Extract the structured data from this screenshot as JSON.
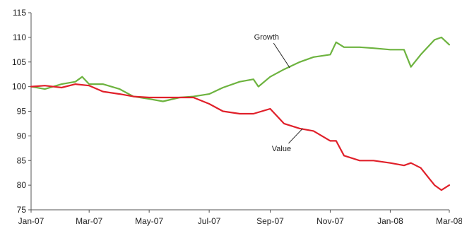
{
  "chart_data": {
    "type": "line",
    "title": "",
    "xlabel": "",
    "ylabel": "",
    "x_ticks": [
      "Jan-07",
      "Mar-07",
      "May-07",
      "Jul-07",
      "Sep-07",
      "Nov-07",
      "Jan-08",
      "Mar-08"
    ],
    "x_tick_dates": [
      "2007-01-01",
      "2007-03-01",
      "2007-05-01",
      "2007-07-01",
      "2007-09-01",
      "2007-11-01",
      "2008-01-01",
      "2008-03-01"
    ],
    "y_ticks": [
      75,
      80,
      85,
      90,
      95,
      100,
      105,
      110,
      115
    ],
    "ylim": [
      75,
      115
    ],
    "xlim": [
      "2007-01-01",
      "2008-03-01"
    ],
    "grid": false,
    "legend": "none",
    "series": [
      {
        "name": "Growth",
        "color": "#6db33f",
        "x": [
          "2007-01-01",
          "2007-01-15",
          "2007-02-01",
          "2007-02-15",
          "2007-02-22",
          "2007-03-01",
          "2007-03-15",
          "2007-04-01",
          "2007-04-15",
          "2007-05-01",
          "2007-05-15",
          "2007-06-01",
          "2007-06-15",
          "2007-07-01",
          "2007-07-15",
          "2007-08-01",
          "2007-08-15",
          "2007-08-20",
          "2007-09-01",
          "2007-09-15",
          "2007-10-01",
          "2007-10-15",
          "2007-11-01",
          "2007-11-07",
          "2007-11-15",
          "2007-12-01",
          "2007-12-15",
          "2008-01-01",
          "2008-01-15",
          "2008-01-22",
          "2008-02-01",
          "2008-02-15",
          "2008-02-22",
          "2008-03-01"
        ],
        "values": [
          100.0,
          99.5,
          100.5,
          101.0,
          102.0,
          100.5,
          100.5,
          99.5,
          98.0,
          97.5,
          97.0,
          97.8,
          98.0,
          98.5,
          99.8,
          101.0,
          101.5,
          100.0,
          102.0,
          103.5,
          105.0,
          106.0,
          106.5,
          109.0,
          108.0,
          108.0,
          107.8,
          107.5,
          107.5,
          104.0,
          106.5,
          109.5,
          110.0,
          108.5
        ]
      },
      {
        "name": "Value",
        "color": "#e0202a",
        "x": [
          "2007-01-01",
          "2007-01-15",
          "2007-02-01",
          "2007-02-15",
          "2007-03-01",
          "2007-03-15",
          "2007-04-01",
          "2007-04-15",
          "2007-05-01",
          "2007-05-15",
          "2007-06-01",
          "2007-06-15",
          "2007-07-01",
          "2007-07-15",
          "2007-08-01",
          "2007-08-15",
          "2007-09-01",
          "2007-09-15",
          "2007-10-01",
          "2007-10-15",
          "2007-11-01",
          "2007-11-07",
          "2007-11-15",
          "2007-12-01",
          "2007-12-15",
          "2008-01-01",
          "2008-01-15",
          "2008-01-22",
          "2008-02-01",
          "2008-02-15",
          "2008-02-22",
          "2008-03-01"
        ],
        "values": [
          100.0,
          100.2,
          99.8,
          100.5,
          100.2,
          99.0,
          98.5,
          98.0,
          97.8,
          97.8,
          97.8,
          97.8,
          96.5,
          95.0,
          94.5,
          94.5,
          95.5,
          92.5,
          91.5,
          91.0,
          89.0,
          89.0,
          86.0,
          85.0,
          85.0,
          84.5,
          84.0,
          84.5,
          83.5,
          80.0,
          79.0,
          80.0
        ]
      }
    ],
    "annotations": [
      {
        "text": "Growth",
        "series": "Growth",
        "x": "2007-09-21",
        "y": 103.8
      },
      {
        "text": "Value",
        "series": "Value",
        "x": "2007-10-04",
        "y": 91.5
      }
    ]
  }
}
